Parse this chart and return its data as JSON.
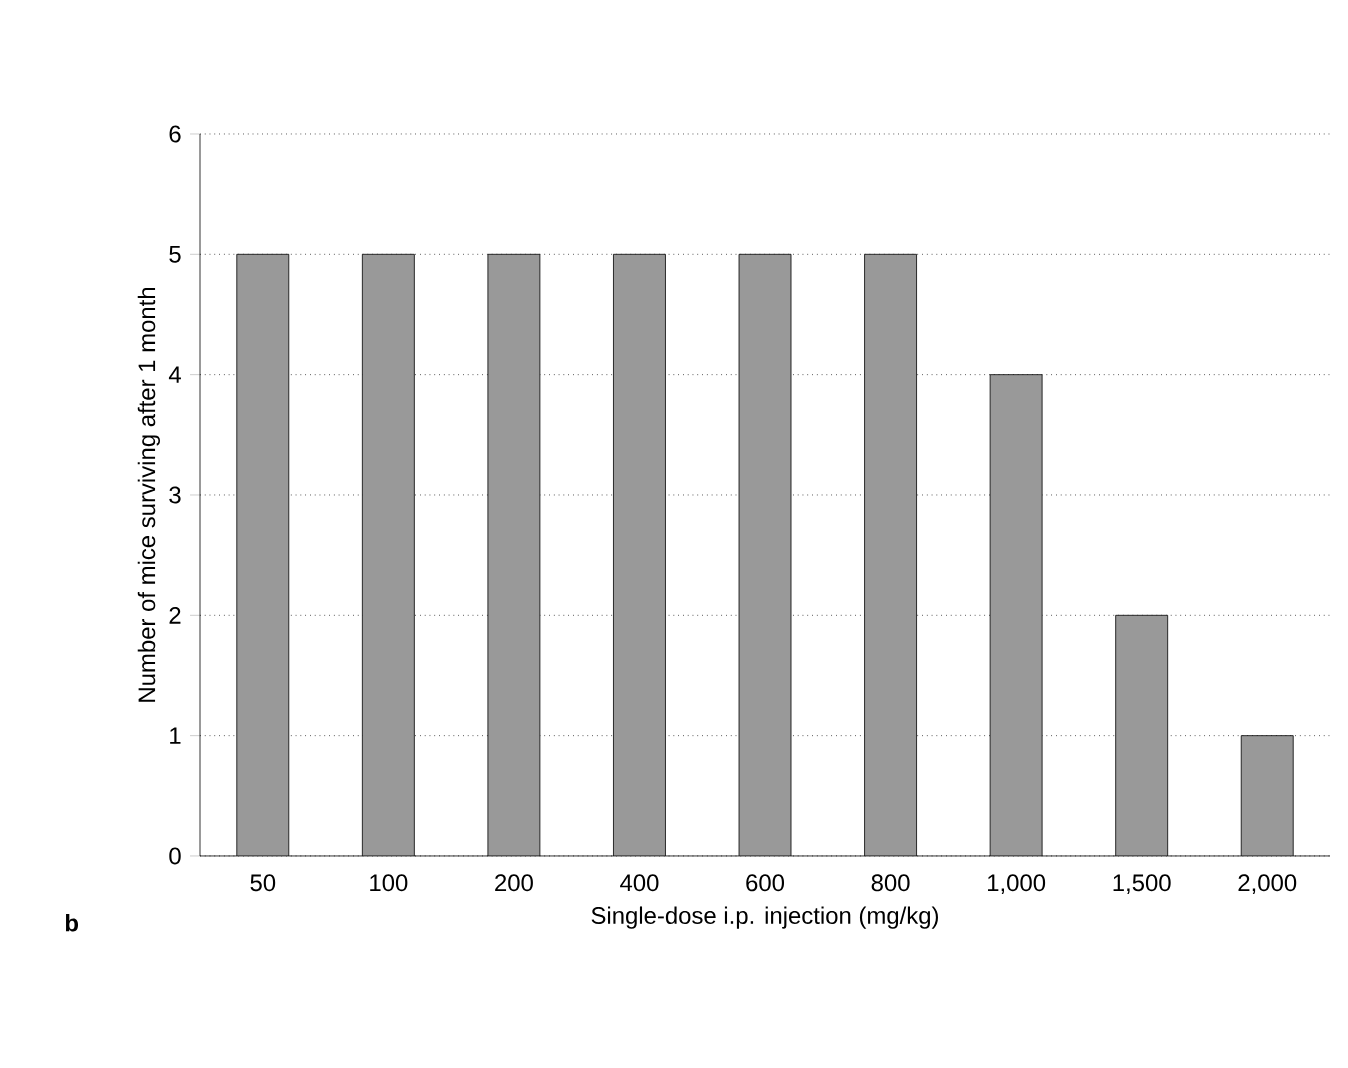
{
  "chart_data": {
    "type": "bar",
    "xlabel": "Single-dose i.p. injection (mg/kg)",
    "ylabel": "Number of mice surviving after 1 month",
    "categories": [
      "50",
      "100",
      "200",
      "400",
      "600",
      "800",
      "1,000",
      "1,500",
      "2,000"
    ],
    "values": [
      5,
      5,
      5,
      5,
      5,
      5,
      4,
      2,
      1
    ],
    "color": "#999999",
    "ylim": [
      0,
      6
    ],
    "yticks": [
      0,
      1,
      2,
      3,
      4,
      5,
      6
    ],
    "grid": "y",
    "line_style": "dotted",
    "annotations": [
      "b"
    ]
  }
}
